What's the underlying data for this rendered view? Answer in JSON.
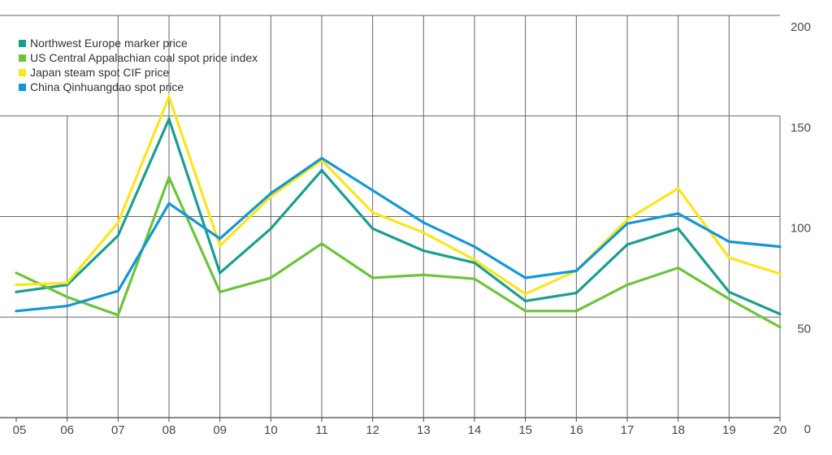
{
  "chart_data": {
    "type": "line",
    "x": [
      "05",
      "06",
      "07",
      "08",
      "09",
      "10",
      "11",
      "12",
      "13",
      "14",
      "15",
      "16",
      "17",
      "18",
      "19",
      "20"
    ],
    "y_ticks": [
      "0",
      "50",
      "100",
      "150",
      "200"
    ],
    "ylim": [
      0,
      200
    ],
    "grid": true,
    "legend_position": "top-left",
    "series": [
      {
        "name": "Northwest Europe marker price",
        "color": "#1b9e8e",
        "values": [
          62.5,
          66,
          90.5,
          148.5,
          72,
          94,
          123,
          94,
          83,
          77,
          58,
          62,
          86,
          94,
          62.5,
          51.5
        ]
      },
      {
        "name": "US Central Appalachian coal spot price index",
        "color": "#6cc43a",
        "values": [
          72,
          60,
          51,
          119.5,
          62.5,
          69.5,
          86.5,
          69.5,
          71,
          69,
          53,
          53,
          66,
          74.5,
          59,
          45
        ]
      },
      {
        "name": "Japan steam spot CIF price",
        "color": "#fbe51c",
        "values": [
          66,
          67,
          97,
          159.5,
          85.5,
          110,
          128,
          102,
          92,
          78.5,
          61.5,
          73,
          98.5,
          114,
          79.5,
          71.5
        ]
      },
      {
        "name": "China Qinhuangdao spot price",
        "color": "#1596d4",
        "values": [
          53,
          55.5,
          63,
          106.5,
          89,
          111.5,
          129,
          113,
          97,
          85,
          69.5,
          73,
          96.5,
          101.5,
          87.5,
          85
        ]
      }
    ]
  }
}
